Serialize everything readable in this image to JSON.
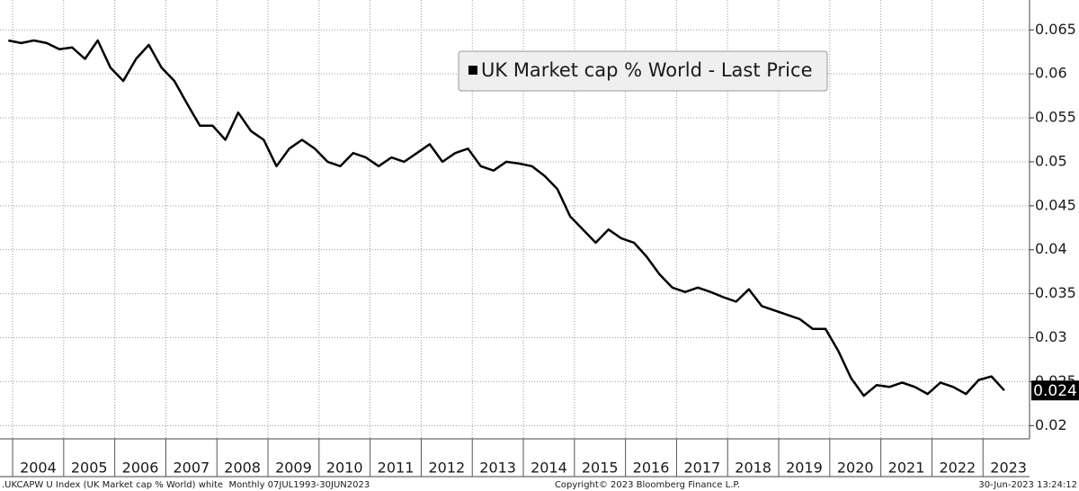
{
  "chart_data": {
    "type": "line",
    "legend": "top",
    "grid": true,
    "ylim": [
      0.0185,
      0.0684
    ],
    "yticks": [
      0.02,
      0.025,
      0.03,
      0.035,
      0.04,
      0.045,
      0.05,
      0.055,
      0.06,
      0.065
    ],
    "categories": [
      null,
      "2004",
      null,
      null,
      null,
      "2005",
      null,
      null,
      null,
      "2006",
      null,
      null,
      null,
      "2007",
      null,
      null,
      null,
      "2008",
      null,
      null,
      null,
      "2009",
      null,
      null,
      null,
      "2010",
      null,
      null,
      null,
      "2011",
      null,
      null,
      null,
      "2012",
      null,
      null,
      null,
      "2013",
      null,
      null,
      null,
      "2014",
      null,
      null,
      null,
      "2015",
      null,
      null,
      null,
      "2016",
      null,
      null,
      null,
      "2017",
      null,
      null,
      null,
      "2018",
      null,
      null,
      null,
      "2019",
      null,
      null,
      null,
      "2020",
      null,
      null,
      null,
      "2021",
      null,
      null,
      null,
      "2022",
      null,
      null,
      null,
      "2023",
      null
    ],
    "series": [
      {
        "name": "UK Market cap % World - Last Price",
        "color": "#000000",
        "values": [
          0.0638,
          0.0635,
          0.0638,
          0.0635,
          0.0628,
          0.063,
          0.0617,
          0.0638,
          0.0607,
          0.0592,
          0.0617,
          0.0633,
          0.0607,
          0.0592,
          0.0566,
          0.0541,
          0.0541,
          0.0525,
          0.0556,
          0.0535,
          0.0525,
          0.0495,
          0.0515,
          0.0525,
          0.0515,
          0.05,
          0.0495,
          0.051,
          0.0505,
          0.0495,
          0.0505,
          0.05,
          0.051,
          0.052,
          0.05,
          0.051,
          0.0515,
          0.0495,
          0.049,
          0.05,
          0.0498,
          0.0495,
          0.0484,
          0.0469,
          0.0438,
          0.0423,
          0.0408,
          0.0423,
          0.0413,
          0.0408,
          0.0392,
          0.0372,
          0.0357,
          0.0352,
          0.0357,
          0.0352,
          0.0346,
          0.0341,
          0.0355,
          0.0336,
          0.0331,
          0.0326,
          0.0321,
          0.031,
          0.031,
          0.0285,
          0.0254,
          0.0234,
          0.0246,
          0.0244,
          0.0249,
          0.0244,
          0.0236,
          0.0249,
          0.0244,
          0.0236,
          0.0252,
          0.0256,
          0.024
        ]
      }
    ]
  },
  "footer": {
    "left": ".UKCAPW U Index (UK Market cap % World) white  Monthly 07JUL1993-30JUN2023",
    "center": "Copyright© 2023 Bloomberg Finance L.P.",
    "right": "30-Jun-2023 13:24:12"
  }
}
